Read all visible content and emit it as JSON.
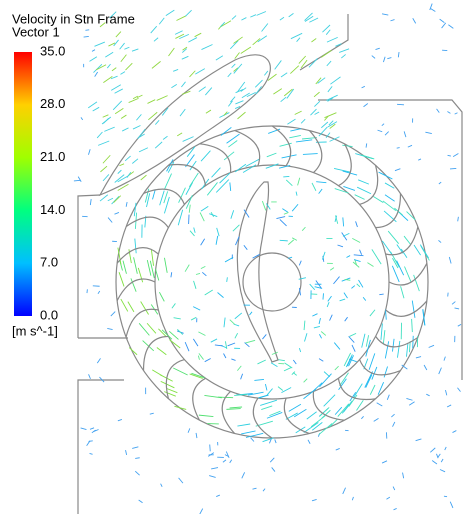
{
  "legend": {
    "title": "Velocity in Stn Frame",
    "subtitle": "Vector 1",
    "unit": "[m s^-1]",
    "colors": [
      "#0000ff",
      "#00bfff",
      "#00ff80",
      "#a0ff00",
      "#ffd000",
      "#ff0000"
    ],
    "ticks": [
      {
        "value": 0,
        "label": "0.0"
      },
      {
        "value": 7,
        "label": "7.0"
      },
      {
        "value": 14,
        "label": "14.0"
      },
      {
        "value": 21,
        "label": "21.0"
      },
      {
        "value": 28,
        "label": "28.0"
      },
      {
        "value": 35,
        "label": "35.0"
      }
    ]
  }
}
